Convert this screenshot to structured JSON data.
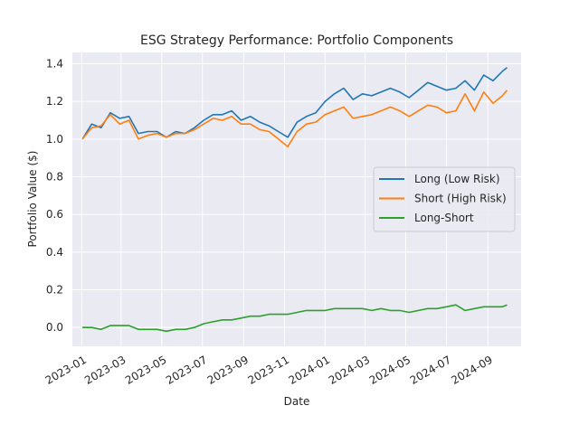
{
  "chart_data": {
    "type": "line",
    "title": "ESG Strategy Performance: Portfolio Components",
    "xlabel": "Date",
    "ylabel": "Portfolio Value ($)",
    "x_axis_type": "date",
    "xlim": [
      "2022-12-18",
      "2024-10-21"
    ],
    "ylim": [
      -0.1,
      1.46
    ],
    "xticks": [
      "2023-01",
      "2023-03",
      "2023-05",
      "2023-07",
      "2023-09",
      "2023-11",
      "2024-01",
      "2024-03",
      "2024-05",
      "2024-07",
      "2024-09"
    ],
    "yticks": [
      "0.0",
      "0.2",
      "0.4",
      "0.6",
      "0.8",
      "1.0",
      "1.2",
      "1.4"
    ],
    "grid": true,
    "background": "#eaeaf2",
    "legend_position": "center-right",
    "x": [
      "2023-01-02",
      "2023-01-16",
      "2023-01-30",
      "2023-02-13",
      "2023-02-27",
      "2023-03-13",
      "2023-03-27",
      "2023-04-10",
      "2023-04-24",
      "2023-05-08",
      "2023-05-22",
      "2023-06-05",
      "2023-06-19",
      "2023-07-03",
      "2023-07-17",
      "2023-07-31",
      "2023-08-14",
      "2023-08-28",
      "2023-09-11",
      "2023-09-25",
      "2023-10-09",
      "2023-10-23",
      "2023-11-06",
      "2023-11-20",
      "2023-12-04",
      "2023-12-18",
      "2024-01-01",
      "2024-01-15",
      "2024-01-29",
      "2024-02-12",
      "2024-02-26",
      "2024-03-11",
      "2024-03-25",
      "2024-04-08",
      "2024-04-22",
      "2024-05-06",
      "2024-05-20",
      "2024-06-03",
      "2024-06-17",
      "2024-07-01",
      "2024-07-15",
      "2024-07-29",
      "2024-08-12",
      "2024-08-26",
      "2024-09-09",
      "2024-09-23",
      "2024-09-30"
    ],
    "series": [
      {
        "name": "Long (Low Risk)",
        "color": "#1f77b4",
        "values": [
          1.0,
          1.08,
          1.06,
          1.14,
          1.11,
          1.12,
          1.03,
          1.04,
          1.04,
          1.01,
          1.04,
          1.03,
          1.06,
          1.1,
          1.13,
          1.13,
          1.15,
          1.1,
          1.12,
          1.09,
          1.07,
          1.04,
          1.01,
          1.09,
          1.12,
          1.14,
          1.2,
          1.24,
          1.27,
          1.21,
          1.24,
          1.23,
          1.25,
          1.27,
          1.25,
          1.22,
          1.26,
          1.3,
          1.28,
          1.26,
          1.27,
          1.31,
          1.26,
          1.34,
          1.31,
          1.36,
          1.38
        ]
      },
      {
        "name": "Short (High Risk)",
        "color": "#ff7f0e",
        "values": [
          1.0,
          1.06,
          1.07,
          1.13,
          1.08,
          1.1,
          1.0,
          1.02,
          1.03,
          1.01,
          1.03,
          1.03,
          1.05,
          1.08,
          1.11,
          1.1,
          1.12,
          1.08,
          1.08,
          1.05,
          1.04,
          1.0,
          0.96,
          1.04,
          1.08,
          1.09,
          1.13,
          1.15,
          1.17,
          1.11,
          1.12,
          1.13,
          1.15,
          1.17,
          1.15,
          1.12,
          1.15,
          1.18,
          1.17,
          1.14,
          1.15,
          1.24,
          1.15,
          1.25,
          1.19,
          1.23,
          1.26
        ]
      },
      {
        "name": "Long-Short",
        "color": "#2ca02c",
        "values": [
          0.0,
          0.0,
          -0.01,
          0.01,
          0.01,
          0.01,
          -0.01,
          -0.01,
          -0.01,
          -0.02,
          -0.01,
          -0.01,
          0.0,
          0.02,
          0.03,
          0.04,
          0.04,
          0.05,
          0.06,
          0.06,
          0.07,
          0.07,
          0.07,
          0.08,
          0.09,
          0.09,
          0.09,
          0.1,
          0.1,
          0.1,
          0.1,
          0.09,
          0.1,
          0.09,
          0.09,
          0.08,
          0.09,
          0.1,
          0.1,
          0.11,
          0.12,
          0.09,
          0.1,
          0.11,
          0.11,
          0.11,
          0.12
        ]
      }
    ]
  }
}
